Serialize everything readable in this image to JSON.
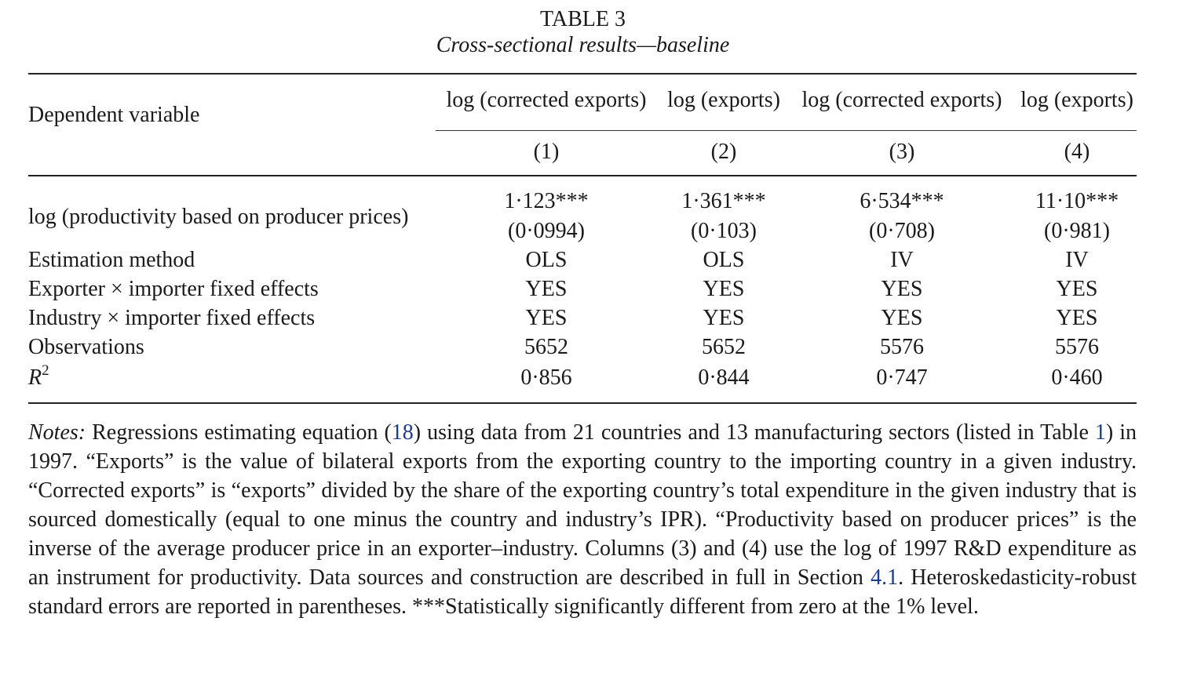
{
  "table": {
    "title": "TABLE 3",
    "subtitle": "Cross-sectional results—baseline",
    "dep_var_label": "Dependent variable",
    "columns": [
      {
        "header": "log (corrected exports)",
        "number": "(1)"
      },
      {
        "header": "log (exports)",
        "number": "(2)"
      },
      {
        "header": "log (corrected exports)",
        "number": "(3)"
      },
      {
        "header": "log (exports)",
        "number": "(4)"
      }
    ],
    "coef_row": {
      "label": "log (productivity based on producer prices)",
      "coefs": [
        "1·123***",
        "1·361***",
        "6·534***",
        "11·10***"
      ],
      "ses": [
        "(0·0994)",
        "(0·103)",
        "(0·708)",
        "(0·981)"
      ]
    },
    "rows": [
      {
        "label": "Estimation method",
        "values": [
          "OLS",
          "OLS",
          "IV",
          "IV"
        ]
      },
      {
        "label": "Exporter × importer fixed effects",
        "values": [
          "YES",
          "YES",
          "YES",
          "YES"
        ]
      },
      {
        "label": "Industry × importer fixed effects",
        "values": [
          "YES",
          "YES",
          "YES",
          "YES"
        ]
      },
      {
        "label": "Observations",
        "values": [
          "5652",
          "5652",
          "5576",
          "5576"
        ]
      }
    ],
    "r2_row": {
      "label_base": "R",
      "label_sup": "2",
      "values": [
        "0·856",
        "0·844",
        "0·747",
        "0·460"
      ]
    }
  },
  "notes": {
    "lead": "Notes:",
    "p1": " Regressions estimating equation (",
    "eq_ref": "18",
    "p2": ") using data from 21 countries and 13 manufacturing sectors (listed in Table ",
    "table_ref": "1",
    "p3": ") in 1997. “Exports” is the value of bilateral exports from the exporting country to the importing country in a given industry. “Corrected exports” is “exports” divided by the share of the exporting country’s total expenditure in the given industry that is sourced domestically (equal to one minus the country and industry’s IPR). “Productivity based on producer prices” is the inverse of the average producer price in an exporter–industry. Columns (3) and (4) use the log of 1997 R&D expenditure as an instrument for productivity. Data sources and construction are described in full in Section ",
    "section_ref": "4.1",
    "p4": ". Heteroskedasticity-robust standard errors are reported in parentheses. ***Statistically significantly different from zero at the 1% level."
  }
}
